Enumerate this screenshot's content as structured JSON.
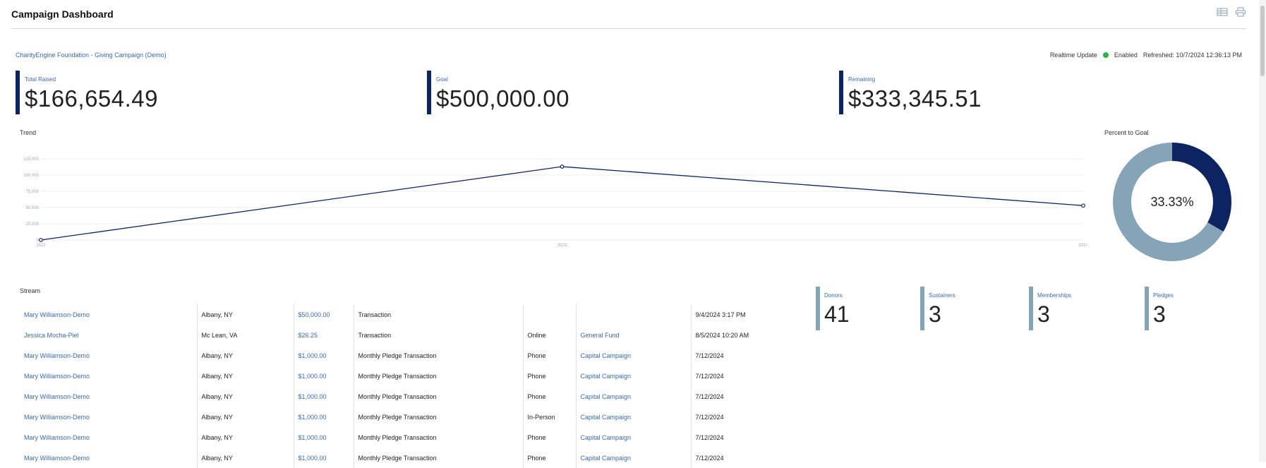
{
  "header": {
    "title": "Campaign Dashboard",
    "icons": [
      "table-view-icon",
      "print-icon"
    ]
  },
  "campaign": {
    "name": "CharityEngine Foundation - Giving Campaign (Demo)",
    "realtime_label": "Realtime Update",
    "realtime_status": "Enabled",
    "refreshed": "Refreshed: 10/7/2024 12:36:13 PM",
    "status_color": "#2db34a"
  },
  "kpis": [
    {
      "label": "Total Raised",
      "value": "$166,654.49"
    },
    {
      "label": "Goal",
      "value": "$500,000.00"
    },
    {
      "label": "Remaining",
      "value": "$333,345.51"
    }
  ],
  "trend": {
    "title": "Trend"
  },
  "percent_goal": {
    "title": "Percent to Goal",
    "value_text": "33.33%",
    "fraction": 0.3333,
    "colors": {
      "filled": "#0c2461",
      "remaining": "#86a4b8"
    }
  },
  "chart_data": {
    "type": "line",
    "title": "Trend",
    "x": [
      "2022",
      "2023",
      "2024"
    ],
    "series": [
      {
        "values": [
          0,
          113000,
          53000
        ]
      }
    ],
    "ylim": [
      0,
      125000
    ],
    "yticks": [
      "0",
      "25,000",
      "50,000",
      "75,000",
      "100,000",
      "125,000"
    ],
    "grid": true,
    "line_color": "#0c2461"
  },
  "stream": {
    "title": "Stream",
    "rows": [
      {
        "name": "Mary Williamson-Demo",
        "location": "Albany, NY",
        "amount": "$50,000.00",
        "type": "Transaction",
        "channel": "",
        "fund": "",
        "date": "9/4/2024 3:17 PM"
      },
      {
        "name": "Jessica Mocha-Piel",
        "location": "Mc Lean, VA",
        "amount": "$26.25",
        "type": "Transaction",
        "channel": "Online",
        "fund": "General Fund",
        "date": "8/5/2024 10:20 AM"
      },
      {
        "name": "Mary Williamson-Demo",
        "location": "Albany, NY",
        "amount": "$1,000.00",
        "type": "Monthly Pledge Transaction",
        "channel": "Phone",
        "fund": "Capital Campaign",
        "date": "7/12/2024"
      },
      {
        "name": "Mary Williamson-Demo",
        "location": "Albany, NY",
        "amount": "$1,000.00",
        "type": "Monthly Pledge Transaction",
        "channel": "Phone",
        "fund": "Capital Campaign",
        "date": "7/12/2024"
      },
      {
        "name": "Mary Williamson-Demo",
        "location": "Albany, NY",
        "amount": "$1,000.00",
        "type": "Monthly Pledge Transaction",
        "channel": "Phone",
        "fund": "Capital Campaign",
        "date": "7/12/2024"
      },
      {
        "name": "Mary Williamson-Demo",
        "location": "Albany, NY",
        "amount": "$1,000.00",
        "type": "Monthly Pledge Transaction",
        "channel": "In-Person",
        "fund": "Capital Campaign",
        "date": "7/12/2024"
      },
      {
        "name": "Mary Williamson-Demo",
        "location": "Albany, NY",
        "amount": "$1,000.00",
        "type": "Monthly Pledge Transaction",
        "channel": "Phone",
        "fund": "Capital Campaign",
        "date": "7/12/2024"
      },
      {
        "name": "Mary Williamson-Demo",
        "location": "Albany, NY",
        "amount": "$1,000.00",
        "type": "Monthly Pledge Transaction",
        "channel": "Phone",
        "fund": "Capital Campaign",
        "date": "7/12/2024"
      }
    ]
  },
  "stats": [
    {
      "label": "Donors",
      "value": "41"
    },
    {
      "label": "Sustainers",
      "value": "3"
    },
    {
      "label": "Memberships",
      "value": "3"
    },
    {
      "label": "Pledges",
      "value": "3"
    }
  ],
  "colors": {
    "accent": "#0c2461",
    "link": "#3b6aa8",
    "stat_bar": "#86a4b8"
  }
}
